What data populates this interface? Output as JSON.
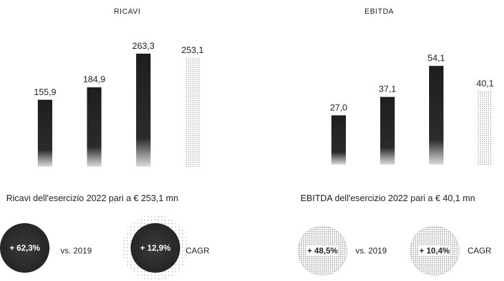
{
  "colors": {
    "bar_dark": "#1e1e1e",
    "bar_dotted": "#9a9a9a",
    "circle_dark": "#2a2a2a"
  },
  "chart_data": [
    {
      "type": "bar",
      "title": "RICAVI",
      "categories": [
        "",
        "",
        "",
        ""
      ],
      "values": [
        155.9,
        184.9,
        263.3,
        253.1
      ],
      "value_labels": [
        "155,9",
        "184,9",
        "263,3",
        "253,1"
      ],
      "styles": [
        "solid",
        "solid",
        "solid",
        "dotted"
      ],
      "ylim": [
        0,
        300
      ],
      "grid": false,
      "legend": "none"
    },
    {
      "type": "bar",
      "title": "EBITDA",
      "categories": [
        "",
        "",
        "",
        ""
      ],
      "values": [
        27.0,
        37.1,
        54.1,
        40.1
      ],
      "value_labels": [
        "27,0",
        "37,1",
        "54,1",
        "40,1"
      ],
      "styles": [
        "solid",
        "solid",
        "solid",
        "dotted"
      ],
      "ylim": [
        0,
        60
      ],
      "grid": false,
      "legend": "none"
    }
  ],
  "captions": {
    "left": "Ricavi dell'esercizio 2022 pari a € 253,1 mn",
    "right": "EBITDA dell'esercizio 2022 pari a € 40,1 mn"
  },
  "kpis": {
    "ricavi_growth": {
      "value": "+ 62,3%",
      "label": "vs. 2019"
    },
    "ricavi_cagr": {
      "value": "+ 12,9%",
      "label": "CAGR"
    },
    "ebitda_growth": {
      "value": "+ 48,5%",
      "label": "vs. 2019"
    },
    "ebitda_cagr": {
      "value": "+ 10,4%",
      "label": "CAGR"
    }
  }
}
